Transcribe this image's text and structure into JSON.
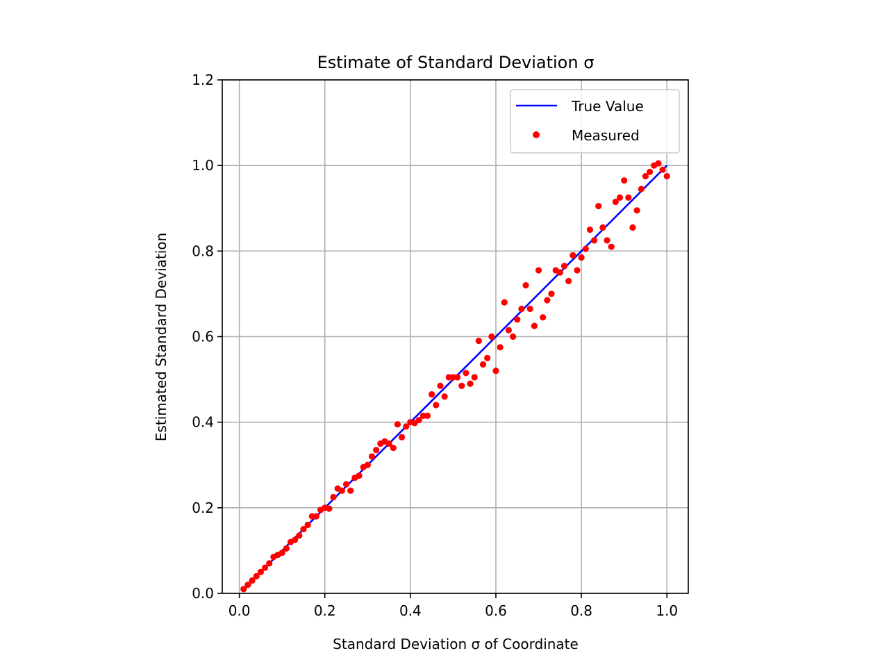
{
  "chart_data": {
    "type": "scatter",
    "title": "Estimate of Standard Deviation σ",
    "xlabel": "Standard Deviation σ of Coordinate",
    "ylabel": "Estimated Standard Deviation",
    "xlim": [
      -0.04,
      1.05
    ],
    "ylim": [
      0.0,
      1.2
    ],
    "xticks": [
      "0.0",
      "0.2",
      "0.4",
      "0.6",
      "0.8",
      "1.0"
    ],
    "yticks": [
      "0.0",
      "0.2",
      "0.4",
      "0.6",
      "0.8",
      "1.0",
      "1.2"
    ],
    "grid": true,
    "legend_position": "upper right",
    "series": [
      {
        "name": "True Value",
        "kind": "line",
        "color": "#0000ff",
        "x": [
          0.01,
          1.0
        ],
        "y": [
          0.01,
          1.0
        ]
      },
      {
        "name": "Measured",
        "kind": "scatter",
        "color": "#ff0000",
        "x": [
          0.01,
          0.02,
          0.03,
          0.04,
          0.05,
          0.06,
          0.07,
          0.08,
          0.09,
          0.1,
          0.11,
          0.12,
          0.13,
          0.14,
          0.15,
          0.16,
          0.17,
          0.18,
          0.19,
          0.2,
          0.21,
          0.22,
          0.23,
          0.24,
          0.25,
          0.26,
          0.27,
          0.28,
          0.29,
          0.3,
          0.31,
          0.32,
          0.33,
          0.34,
          0.35,
          0.36,
          0.37,
          0.38,
          0.39,
          0.4,
          0.41,
          0.42,
          0.43,
          0.44,
          0.45,
          0.46,
          0.47,
          0.48,
          0.49,
          0.5,
          0.51,
          0.52,
          0.53,
          0.54,
          0.55,
          0.56,
          0.57,
          0.58,
          0.59,
          0.6,
          0.61,
          0.62,
          0.63,
          0.64,
          0.65,
          0.66,
          0.67,
          0.68,
          0.69,
          0.7,
          0.71,
          0.72,
          0.73,
          0.74,
          0.75,
          0.76,
          0.77,
          0.78,
          0.79,
          0.8,
          0.81,
          0.82,
          0.83,
          0.84,
          0.85,
          0.86,
          0.87,
          0.88,
          0.89,
          0.9,
          0.91,
          0.92,
          0.93,
          0.94,
          0.95,
          0.96,
          0.97,
          0.98,
          0.99,
          1.0
        ],
        "y": [
          0.01,
          0.02,
          0.03,
          0.04,
          0.05,
          0.06,
          0.07,
          0.085,
          0.09,
          0.095,
          0.105,
          0.12,
          0.125,
          0.135,
          0.15,
          0.16,
          0.18,
          0.18,
          0.195,
          0.2,
          0.198,
          0.225,
          0.245,
          0.24,
          0.255,
          0.24,
          0.27,
          0.275,
          0.295,
          0.3,
          0.32,
          0.335,
          0.35,
          0.355,
          0.35,
          0.34,
          0.395,
          0.365,
          0.39,
          0.4,
          0.398,
          0.405,
          0.415,
          0.415,
          0.465,
          0.44,
          0.485,
          0.46,
          0.505,
          0.505,
          0.505,
          0.485,
          0.515,
          0.49,
          0.505,
          0.59,
          0.535,
          0.55,
          0.6,
          0.52,
          0.575,
          0.68,
          0.615,
          0.6,
          0.64,
          0.665,
          0.72,
          0.665,
          0.625,
          0.755,
          0.645,
          0.685,
          0.7,
          0.755,
          0.75,
          0.765,
          0.73,
          0.79,
          0.755,
          0.785,
          0.805,
          0.85,
          0.825,
          0.905,
          0.855,
          0.825,
          0.81,
          0.915,
          0.925,
          0.965,
          0.925,
          0.855,
          0.895,
          0.945,
          0.975,
          0.985,
          1.0,
          1.005,
          0.99,
          0.975
        ]
      }
    ]
  }
}
